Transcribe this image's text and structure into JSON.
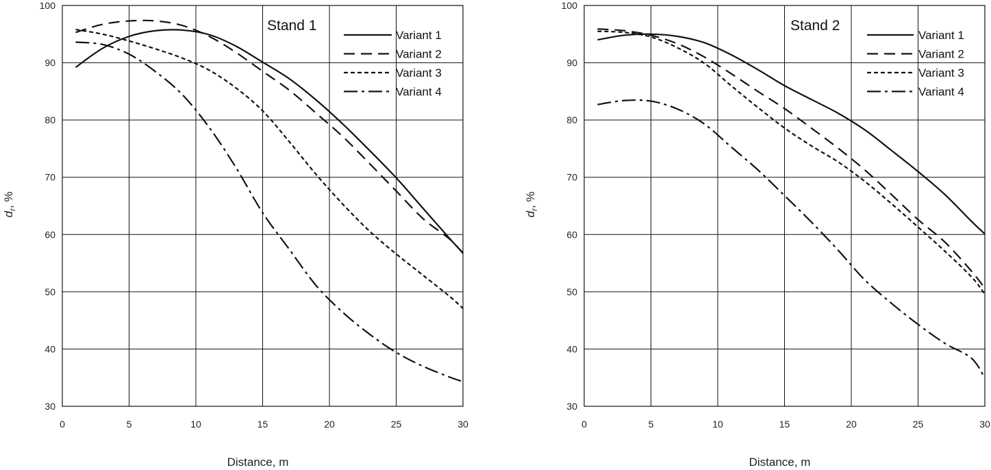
{
  "chart_data": [
    {
      "type": "line",
      "title": "Stand 1",
      "xlabel": "Distance, m",
      "ylabel": "d_r, %",
      "ylabel_main": "d",
      "ylabel_sub": "r",
      "ylabel_suffix": ", %",
      "xlim": [
        0,
        30
      ],
      "ylim": [
        30,
        100
      ],
      "xticks": [
        0,
        5,
        10,
        15,
        20,
        25,
        30
      ],
      "yticks": [
        30,
        40,
        50,
        60,
        70,
        80,
        90,
        100
      ],
      "grid": true,
      "legend_position": "top-right",
      "series": [
        {
          "name": "Variant 1",
          "dash": "solid",
          "x": [
            1,
            3,
            5,
            7,
            9,
            11,
            13,
            15,
            17,
            19,
            21,
            23,
            25,
            27,
            29,
            30
          ],
          "y": [
            89.2,
            92.5,
            94.6,
            95.6,
            95.7,
            94.9,
            92.9,
            90.1,
            87.2,
            83.5,
            79.3,
            74.7,
            69.9,
            64.6,
            59.3,
            56.8
          ]
        },
        {
          "name": "Variant 2",
          "dash": "dash",
          "x": [
            1,
            3,
            5,
            7,
            9,
            11,
            13,
            15,
            17,
            19,
            21,
            23,
            25,
            27,
            29,
            30
          ],
          "y": [
            95.3,
            96.7,
            97.3,
            97.3,
            96.5,
            94.6,
            91.8,
            88.5,
            85.2,
            81.2,
            77.1,
            72.4,
            67.6,
            62.8,
            59.2,
            56.7
          ]
        },
        {
          "name": "Variant 3",
          "dash": "short-dash",
          "x": [
            1,
            3,
            5,
            7,
            9,
            11,
            13,
            15,
            17,
            19,
            21,
            23,
            25,
            27,
            29,
            30
          ],
          "y": [
            95.8,
            95.0,
            93.8,
            92.4,
            90.8,
            88.7,
            85.6,
            81.6,
            76.2,
            70.5,
            65.3,
            60.6,
            56.6,
            52.9,
            49.2,
            47.1
          ]
        },
        {
          "name": "Variant 4",
          "dash": "dash-dot",
          "x": [
            1,
            3,
            5,
            7,
            9,
            11,
            13,
            15,
            17,
            19,
            21,
            23,
            25,
            27,
            29,
            30
          ],
          "y": [
            93.6,
            93.2,
            91.5,
            88.4,
            84.4,
            78.7,
            71.7,
            63.8,
            57.4,
            51.1,
            46.4,
            42.6,
            39.4,
            37.0,
            35.1,
            34.3
          ]
        }
      ]
    },
    {
      "type": "line",
      "title": "Stand 2",
      "xlabel": "Distance, m",
      "ylabel": "d_r, %",
      "ylabel_main": "d",
      "ylabel_sub": "r",
      "ylabel_suffix": ", %",
      "xlim": [
        0,
        30
      ],
      "ylim": [
        30,
        100
      ],
      "xticks": [
        0,
        5,
        10,
        15,
        20,
        25,
        30
      ],
      "yticks": [
        30,
        40,
        50,
        60,
        70,
        80,
        90,
        100
      ],
      "grid": true,
      "legend_position": "top-right",
      "series": [
        {
          "name": "Variant 1",
          "dash": "solid",
          "x": [
            1,
            3,
            5,
            7,
            9,
            11,
            13,
            15,
            17,
            19,
            21,
            23,
            25,
            27,
            29,
            30
          ],
          "y": [
            94.0,
            94.8,
            95.0,
            94.6,
            93.5,
            91.4,
            88.8,
            86.0,
            83.6,
            81.2,
            78.3,
            74.7,
            71.0,
            67.0,
            62.3,
            60.1
          ]
        },
        {
          "name": "Variant 2",
          "dash": "dash",
          "x": [
            1,
            3,
            5,
            7,
            9,
            11,
            13,
            15,
            17,
            19,
            21,
            23,
            25,
            27,
            29,
            30
          ],
          "y": [
            95.9,
            95.6,
            94.8,
            93.3,
            91.0,
            88.1,
            85.0,
            82.0,
            78.6,
            75.1,
            71.3,
            67.0,
            62.6,
            58.7,
            53.6,
            50.6
          ]
        },
        {
          "name": "Variant 3",
          "dash": "short-dash",
          "x": [
            1,
            3,
            5,
            7,
            9,
            11,
            13,
            15,
            17,
            19,
            21,
            23,
            25,
            27,
            29,
            30
          ],
          "y": [
            95.5,
            95.3,
            94.5,
            92.6,
            89.9,
            86.0,
            82.2,
            78.6,
            75.5,
            72.7,
            69.3,
            65.4,
            61.3,
            57.1,
            52.6,
            49.6
          ]
        },
        {
          "name": "Variant 4",
          "dash": "dash-dot",
          "x": [
            1,
            3,
            5,
            7,
            9,
            11,
            13,
            15,
            17,
            19,
            21,
            23,
            25,
            27,
            29,
            30
          ],
          "y": [
            82.7,
            83.4,
            83.3,
            81.9,
            79.3,
            75.3,
            71.3,
            66.8,
            62.2,
            57.3,
            52.1,
            48.0,
            44.3,
            41.0,
            38.4,
            34.9
          ]
        }
      ]
    }
  ]
}
